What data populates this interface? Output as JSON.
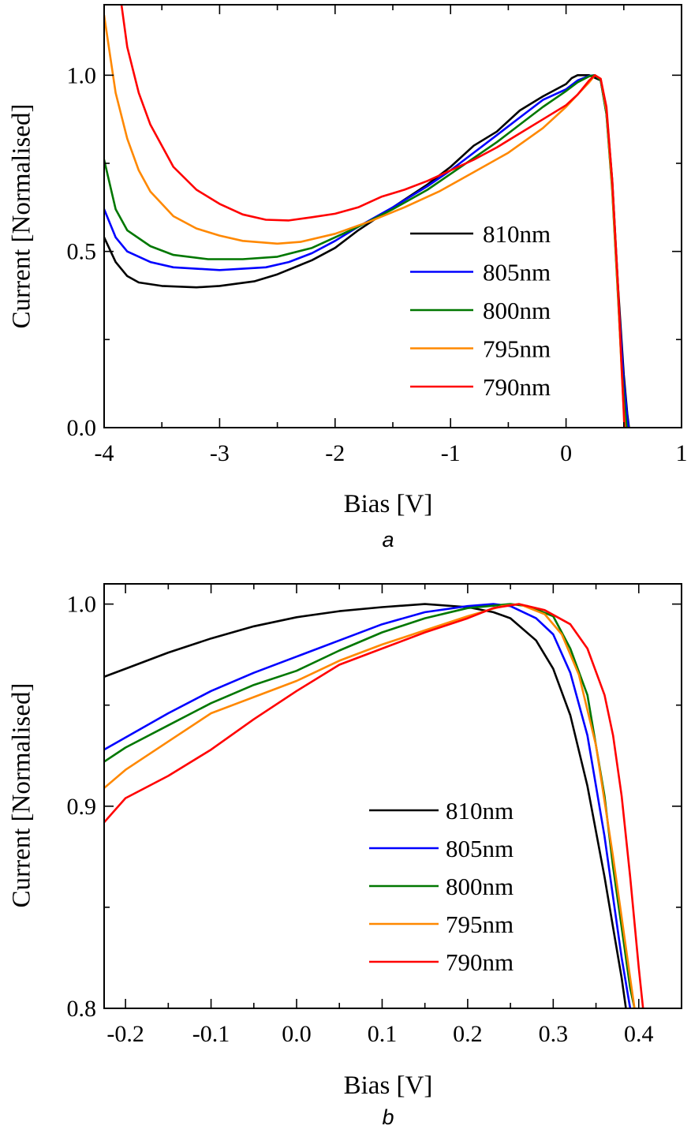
{
  "chart_data": [
    {
      "type": "line",
      "panel_label": "a",
      "xlabel": "Bias [V]",
      "ylabel": "Current [Normalised]",
      "xlim": [
        -4,
        1
      ],
      "ylim": [
        0.0,
        1.2
      ],
      "xticks": [
        -4,
        -3,
        -2,
        -1,
        0,
        1
      ],
      "xtick_labels": [
        "-4",
        "-3",
        "-2",
        "-1",
        "0",
        "1"
      ],
      "yticks": [
        0.0,
        0.5,
        1.0
      ],
      "ytick_labels": [
        "0.0",
        "0.5",
        "1.0"
      ],
      "grid": false,
      "legend_position": "center-right",
      "series": [
        {
          "name": "810nm",
          "color": "#000000",
          "points": [
            [
              -4,
              0.54
            ],
            [
              -3.9,
              0.47
            ],
            [
              -3.8,
              0.43
            ],
            [
              -3.7,
              0.412
            ],
            [
              -3.5,
              0.402
            ],
            [
              -3.2,
              0.398
            ],
            [
              -3.0,
              0.402
            ],
            [
              -2.7,
              0.415
            ],
            [
              -2.5,
              0.435
            ],
            [
              -2.2,
              0.475
            ],
            [
              -2.0,
              0.51
            ],
            [
              -1.8,
              0.56
            ],
            [
              -1.5,
              0.625
            ],
            [
              -1.2,
              0.69
            ],
            [
              -1.0,
              0.74
            ],
            [
              -0.8,
              0.8
            ],
            [
              -0.6,
              0.84
            ],
            [
              -0.4,
              0.9
            ],
            [
              -0.2,
              0.94
            ],
            [
              0.0,
              0.975
            ],
            [
              0.05,
              0.992
            ],
            [
              0.1,
              1.0
            ],
            [
              0.2,
              1.0
            ],
            [
              0.3,
              0.985
            ],
            [
              0.35,
              0.9
            ],
            [
              0.4,
              0.7
            ],
            [
              0.45,
              0.4
            ],
            [
              0.5,
              0.15
            ],
            [
              0.53,
              0.04
            ],
            [
              0.545,
              0.0
            ]
          ]
        },
        {
          "name": "805nm",
          "color": "#0000ff",
          "points": [
            [
              -4,
              0.62
            ],
            [
              -3.9,
              0.54
            ],
            [
              -3.8,
              0.5
            ],
            [
              -3.6,
              0.47
            ],
            [
              -3.4,
              0.455
            ],
            [
              -3.0,
              0.447
            ],
            [
              -2.6,
              0.455
            ],
            [
              -2.4,
              0.47
            ],
            [
              -2.2,
              0.495
            ],
            [
              -2.0,
              0.53
            ],
            [
              -1.8,
              0.57
            ],
            [
              -1.5,
              0.625
            ],
            [
              -1.2,
              0.685
            ],
            [
              -1.0,
              0.73
            ],
            [
              -0.8,
              0.78
            ],
            [
              -0.6,
              0.83
            ],
            [
              -0.4,
              0.88
            ],
            [
              -0.2,
              0.93
            ],
            [
              0.0,
              0.96
            ],
            [
              0.1,
              0.985
            ],
            [
              0.2,
              0.998
            ],
            [
              0.25,
              1.0
            ],
            [
              0.3,
              0.985
            ],
            [
              0.35,
              0.89
            ],
            [
              0.4,
              0.68
            ],
            [
              0.45,
              0.38
            ],
            [
              0.5,
              0.13
            ],
            [
              0.53,
              0.03
            ],
            [
              0.54,
              0.0
            ]
          ]
        },
        {
          "name": "800nm",
          "color": "#007700",
          "points": [
            [
              -4,
              0.76
            ],
            [
              -3.9,
              0.62
            ],
            [
              -3.8,
              0.56
            ],
            [
              -3.6,
              0.515
            ],
            [
              -3.4,
              0.49
            ],
            [
              -3.1,
              0.478
            ],
            [
              -2.8,
              0.478
            ],
            [
              -2.5,
              0.485
            ],
            [
              -2.2,
              0.51
            ],
            [
              -2.0,
              0.54
            ],
            [
              -1.8,
              0.57
            ],
            [
              -1.5,
              0.62
            ],
            [
              -1.2,
              0.675
            ],
            [
              -1.0,
              0.72
            ],
            [
              -0.8,
              0.765
            ],
            [
              -0.6,
              0.81
            ],
            [
              -0.4,
              0.86
            ],
            [
              -0.2,
              0.91
            ],
            [
              0.0,
              0.955
            ],
            [
              0.1,
              0.98
            ],
            [
              0.2,
              0.997
            ],
            [
              0.25,
              1.0
            ],
            [
              0.3,
              0.985
            ],
            [
              0.35,
              0.89
            ],
            [
              0.4,
              0.67
            ],
            [
              0.45,
              0.37
            ],
            [
              0.48,
              0.18
            ],
            [
              0.51,
              0.05
            ],
            [
              0.525,
              0.0
            ]
          ]
        },
        {
          "name": "795nm",
          "color": "#ff8800",
          "points": [
            [
              -4,
              1.17
            ],
            [
              -3.9,
              0.95
            ],
            [
              -3.8,
              0.82
            ],
            [
              -3.7,
              0.73
            ],
            [
              -3.6,
              0.67
            ],
            [
              -3.4,
              0.6
            ],
            [
              -3.2,
              0.565
            ],
            [
              -3.0,
              0.545
            ],
            [
              -2.8,
              0.53
            ],
            [
              -2.5,
              0.522
            ],
            [
              -2.3,
              0.527
            ],
            [
              -2.0,
              0.55
            ],
            [
              -1.7,
              0.585
            ],
            [
              -1.4,
              0.625
            ],
            [
              -1.1,
              0.67
            ],
            [
              -0.8,
              0.725
            ],
            [
              -0.5,
              0.78
            ],
            [
              -0.2,
              0.85
            ],
            [
              0.0,
              0.91
            ],
            [
              0.1,
              0.945
            ],
            [
              0.2,
              0.98
            ],
            [
              0.25,
              1.0
            ],
            [
              0.3,
              0.99
            ],
            [
              0.35,
              0.9
            ],
            [
              0.4,
              0.68
            ],
            [
              0.45,
              0.38
            ],
            [
              0.48,
              0.17
            ],
            [
              0.5,
              0.05
            ],
            [
              0.51,
              0.0
            ]
          ]
        },
        {
          "name": "790nm",
          "color": "#ff0000",
          "points": [
            [
              -3.85,
              1.2
            ],
            [
              -3.8,
              1.08
            ],
            [
              -3.7,
              0.95
            ],
            [
              -3.6,
              0.86
            ],
            [
              -3.4,
              0.74
            ],
            [
              -3.2,
              0.675
            ],
            [
              -3.0,
              0.635
            ],
            [
              -2.8,
              0.605
            ],
            [
              -2.6,
              0.59
            ],
            [
              -2.4,
              0.588
            ],
            [
              -2.2,
              0.597
            ],
            [
              -2.0,
              0.607
            ],
            [
              -1.8,
              0.625
            ],
            [
              -1.6,
              0.655
            ],
            [
              -1.4,
              0.675
            ],
            [
              -1.2,
              0.7
            ],
            [
              -1.0,
              0.73
            ],
            [
              -0.8,
              0.76
            ],
            [
              -0.6,
              0.795
            ],
            [
              -0.4,
              0.835
            ],
            [
              -0.2,
              0.875
            ],
            [
              0.0,
              0.915
            ],
            [
              0.1,
              0.945
            ],
            [
              0.2,
              0.985
            ],
            [
              0.25,
              1.0
            ],
            [
              0.3,
              0.99
            ],
            [
              0.35,
              0.91
            ],
            [
              0.4,
              0.7
            ],
            [
              0.45,
              0.4
            ],
            [
              0.48,
              0.18
            ],
            [
              0.5,
              0.04
            ],
            [
              0.505,
              0.0
            ]
          ]
        }
      ]
    },
    {
      "type": "line",
      "panel_label": "b",
      "xlabel": "Bias [V]",
      "ylabel": "Current [Normalised]",
      "xlim": [
        -0.225,
        0.45
      ],
      "ylim": [
        0.8,
        1.01
      ],
      "xticks": [
        -0.2,
        -0.1,
        0.0,
        0.1,
        0.2,
        0.3,
        0.4
      ],
      "xtick_labels": [
        "-0.2",
        "-0.1",
        "0.0",
        "0.1",
        "0.2",
        "0.3",
        "0.4"
      ],
      "yticks": [
        0.8,
        0.9,
        1.0
      ],
      "ytick_labels": [
        "0.8",
        "0.9",
        "1.0"
      ],
      "grid": false,
      "legend_position": "center-right",
      "series": [
        {
          "name": "810nm",
          "color": "#000000",
          "points": [
            [
              -0.225,
              0.964
            ],
            [
              -0.2,
              0.968
            ],
            [
              -0.15,
              0.976
            ],
            [
              -0.1,
              0.983
            ],
            [
              -0.05,
              0.989
            ],
            [
              0.0,
              0.9935
            ],
            [
              0.05,
              0.9965
            ],
            [
              0.1,
              0.9985
            ],
            [
              0.15,
              1.0
            ],
            [
              0.2,
              0.9985
            ],
            [
              0.23,
              0.996
            ],
            [
              0.25,
              0.993
            ],
            [
              0.28,
              0.982
            ],
            [
              0.3,
              0.968
            ],
            [
              0.32,
              0.945
            ],
            [
              0.34,
              0.91
            ],
            [
              0.36,
              0.865
            ],
            [
              0.37,
              0.84
            ],
            [
              0.38,
              0.815
            ],
            [
              0.385,
              0.8
            ]
          ]
        },
        {
          "name": "805nm",
          "color": "#0000ff",
          "points": [
            [
              -0.225,
              0.928
            ],
            [
              -0.2,
              0.934
            ],
            [
              -0.15,
              0.946
            ],
            [
              -0.1,
              0.957
            ],
            [
              -0.05,
              0.966
            ],
            [
              0.0,
              0.974
            ],
            [
              0.05,
              0.982
            ],
            [
              0.1,
              0.99
            ],
            [
              0.15,
              0.996
            ],
            [
              0.2,
              0.999
            ],
            [
              0.23,
              1.0
            ],
            [
              0.25,
              0.999
            ],
            [
              0.28,
              0.993
            ],
            [
              0.3,
              0.985
            ],
            [
              0.32,
              0.966
            ],
            [
              0.34,
              0.935
            ],
            [
              0.36,
              0.885
            ],
            [
              0.37,
              0.855
            ],
            [
              0.38,
              0.825
            ],
            [
              0.39,
              0.8
            ]
          ]
        },
        {
          "name": "800nm",
          "color": "#007700",
          "points": [
            [
              -0.225,
              0.922
            ],
            [
              -0.2,
              0.929
            ],
            [
              -0.15,
              0.94
            ],
            [
              -0.1,
              0.951
            ],
            [
              -0.05,
              0.96
            ],
            [
              0.0,
              0.967
            ],
            [
              0.05,
              0.977
            ],
            [
              0.1,
              0.986
            ],
            [
              0.15,
              0.993
            ],
            [
              0.2,
              0.998
            ],
            [
              0.25,
              1.0
            ],
            [
              0.27,
              0.999
            ],
            [
              0.3,
              0.994
            ],
            [
              0.32,
              0.978
            ],
            [
              0.34,
              0.955
            ],
            [
              0.36,
              0.905
            ],
            [
              0.37,
              0.87
            ],
            [
              0.38,
              0.84
            ],
            [
              0.39,
              0.81
            ],
            [
              0.395,
              0.8
            ]
          ]
        },
        {
          "name": "795nm",
          "color": "#ff8800",
          "points": [
            [
              -0.225,
              0.909
            ],
            [
              -0.2,
              0.918
            ],
            [
              -0.15,
              0.932
            ],
            [
              -0.1,
              0.946
            ],
            [
              -0.05,
              0.954
            ],
            [
              0.0,
              0.962
            ],
            [
              0.05,
              0.972
            ],
            [
              0.1,
              0.98
            ],
            [
              0.15,
              0.987
            ],
            [
              0.2,
              0.994
            ],
            [
              0.24,
              0.999
            ],
            [
              0.26,
              1.0
            ],
            [
              0.29,
              0.995
            ],
            [
              0.31,
              0.985
            ],
            [
              0.33,
              0.965
            ],
            [
              0.35,
              0.93
            ],
            [
              0.37,
              0.875
            ],
            [
              0.38,
              0.845
            ],
            [
              0.39,
              0.815
            ],
            [
              0.395,
              0.8
            ]
          ]
        },
        {
          "name": "790nm",
          "color": "#ff0000",
          "points": [
            [
              -0.225,
              0.892
            ],
            [
              -0.2,
              0.904
            ],
            [
              -0.15,
              0.915
            ],
            [
              -0.1,
              0.928
            ],
            [
              -0.05,
              0.943
            ],
            [
              0.0,
              0.957
            ],
            [
              0.05,
              0.97
            ],
            [
              0.1,
              0.978
            ],
            [
              0.15,
              0.986
            ],
            [
              0.2,
              0.993
            ],
            [
              0.23,
              0.998
            ],
            [
              0.26,
              1.0
            ],
            [
              0.29,
              0.997
            ],
            [
              0.32,
              0.99
            ],
            [
              0.34,
              0.978
            ],
            [
              0.36,
              0.955
            ],
            [
              0.37,
              0.935
            ],
            [
              0.38,
              0.905
            ],
            [
              0.39,
              0.865
            ],
            [
              0.4,
              0.82
            ],
            [
              0.405,
              0.8
            ]
          ]
        }
      ]
    }
  ]
}
